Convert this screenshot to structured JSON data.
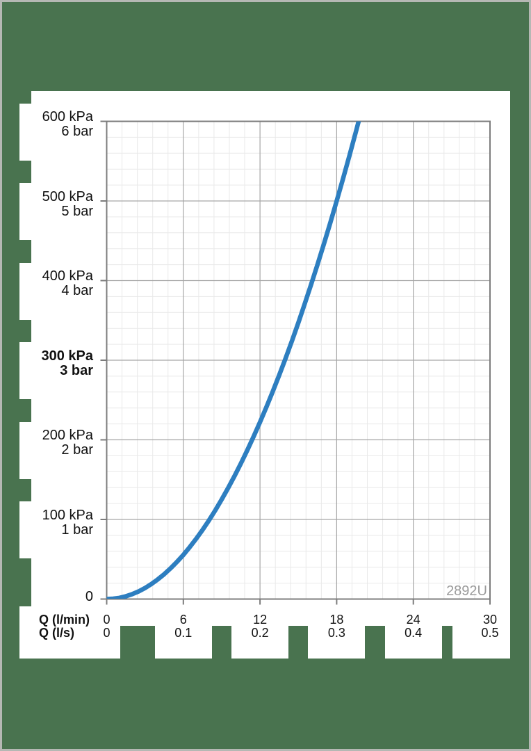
{
  "page": {
    "background_color": "#49734f",
    "frame_border_color": "#b5b8b4",
    "panel_color": "#ffffff",
    "text_color": "#111111"
  },
  "chart_data": {
    "type": "line",
    "watermark": {
      "text": "2892U",
      "color": "#9b9b9b"
    },
    "grid": {
      "minor_color": "#e9e9e9",
      "major_color": "#a6a6a6",
      "axis_color": "#7c7c7c",
      "grid_on": true
    },
    "x_axis": {
      "row1_label": "Q (l/min)",
      "row2_label": "Q (l/s)",
      "range_lmin": [
        0,
        30
      ],
      "major_step_lmin": 6,
      "minor_step_lmin": 1.2,
      "ticks": [
        {
          "value": 0,
          "lmin": "0",
          "ls": "0"
        },
        {
          "value": 6,
          "lmin": "6",
          "ls": "0.1"
        },
        {
          "value": 12,
          "lmin": "12",
          "ls": "0.2"
        },
        {
          "value": 18,
          "lmin": "18",
          "ls": "0.3"
        },
        {
          "value": 24,
          "lmin": "24",
          "ls": "0.4"
        },
        {
          "value": 30,
          "lmin": "30",
          "ls": "0.5"
        }
      ]
    },
    "y_axis": {
      "range_kpa": [
        0,
        600
      ],
      "major_step_kpa": 100,
      "minor_step_kpa": 20,
      "origin_label": "0",
      "ticks": [
        {
          "value": 600,
          "kpa": "600 kPa",
          "bar": "6 bar",
          "bold": false
        },
        {
          "value": 500,
          "kpa": "500 kPa",
          "bar": "5 bar",
          "bold": false
        },
        {
          "value": 400,
          "kpa": "400 kPa",
          "bar": "4 bar",
          "bold": false
        },
        {
          "value": 300,
          "kpa": "300 kPa",
          "bar": "3 bar",
          "bold": true
        },
        {
          "value": 200,
          "kpa": "200 kPa",
          "bar": "2 bar",
          "bold": false
        },
        {
          "value": 100,
          "kpa": "100 kPa",
          "bar": "1 bar",
          "bold": false
        }
      ]
    },
    "series": [
      {
        "name": "pressure-drop-curve",
        "color": "#2d7ec0",
        "stroke_width": 6.5,
        "points_q_lmin_p_kpa": [
          [
            0,
            0
          ],
          [
            0.5,
            0.4
          ],
          [
            1,
            1.5
          ],
          [
            1.5,
            3.5
          ],
          [
            2,
            6.2
          ],
          [
            2.5,
            9.6
          ],
          [
            3,
            13.9
          ],
          [
            3.5,
            18.9
          ],
          [
            4,
            24.7
          ],
          [
            4.5,
            31.2
          ],
          [
            5,
            38.6
          ],
          [
            5.5,
            46.7
          ],
          [
            6,
            55.5
          ],
          [
            6.5,
            65.2
          ],
          [
            7,
            75.6
          ],
          [
            7.5,
            86.8
          ],
          [
            8,
            98.8
          ],
          [
            8.5,
            111.5
          ],
          [
            9,
            125
          ],
          [
            9.5,
            139.3
          ],
          [
            10,
            154.3
          ],
          [
            10.5,
            170.1
          ],
          [
            11,
            186.7
          ],
          [
            11.5,
            204.1
          ],
          [
            12,
            222.2
          ],
          [
            12.5,
            241.1
          ],
          [
            13,
            260.8
          ],
          [
            13.5,
            281.2
          ],
          [
            14,
            302.4
          ],
          [
            14.5,
            324.4
          ],
          [
            15,
            347.2
          ],
          [
            15.5,
            370.7
          ],
          [
            16,
            395
          ],
          [
            16.5,
            420.1
          ],
          [
            17,
            445.9
          ],
          [
            17.5,
            472.5
          ],
          [
            18,
            500
          ],
          [
            18.5,
            528.1
          ],
          [
            19,
            557
          ],
          [
            19.5,
            586.7
          ],
          [
            20,
            617.2
          ]
        ]
      }
    ]
  }
}
